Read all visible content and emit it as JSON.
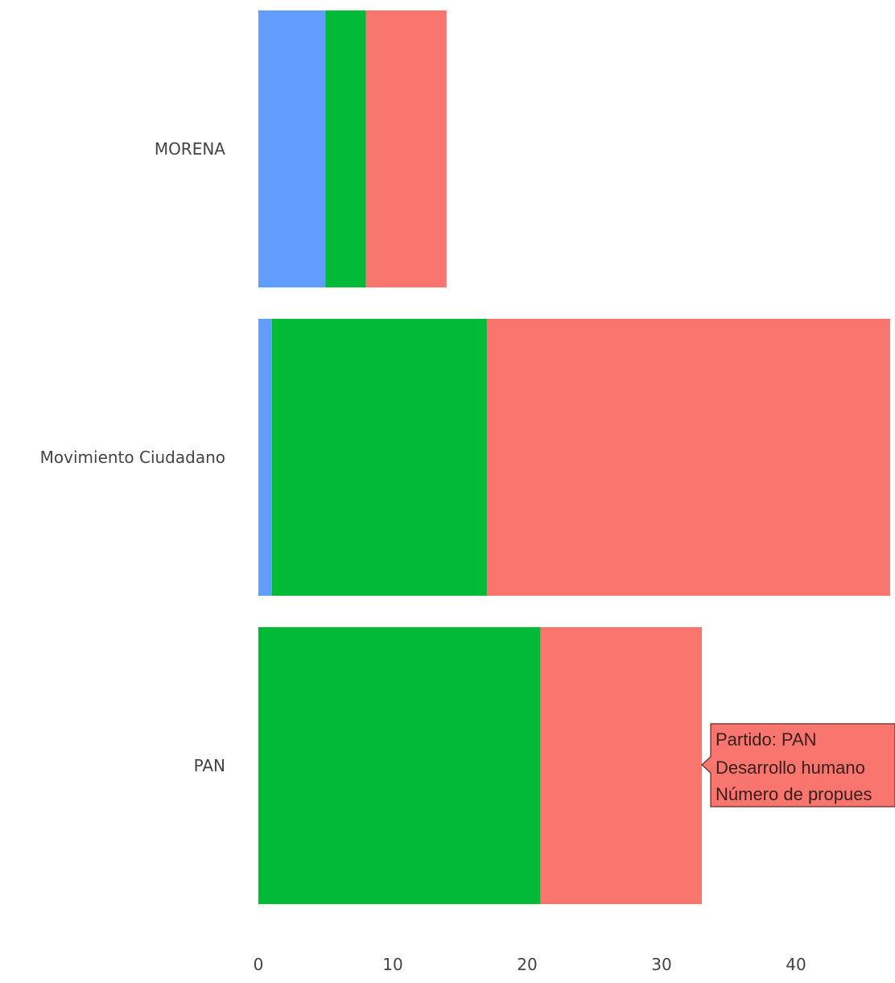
{
  "chart_data": {
    "type": "bar",
    "orientation": "horizontal",
    "stacked": true,
    "categories": [
      "MORENA",
      "Movimiento Ciudadano",
      "PAN"
    ],
    "series": [
      {
        "color": "#619cff",
        "values": [
          5,
          1,
          0
        ]
      },
      {
        "color": "#00ba38",
        "values": [
          3,
          16,
          21
        ]
      },
      {
        "color": "#f8766d",
        "values": [
          6,
          30,
          12
        ]
      }
    ],
    "x_ticks": [
      0,
      10,
      20,
      30,
      40
    ],
    "xlim": [
      0,
      47
    ],
    "grid": false,
    "legend": "none"
  },
  "tooltip": {
    "line1": "Partido:  PAN",
    "line2": " Desarrollo humano",
    "line3": " Número de propues",
    "color": "#f8766d"
  }
}
